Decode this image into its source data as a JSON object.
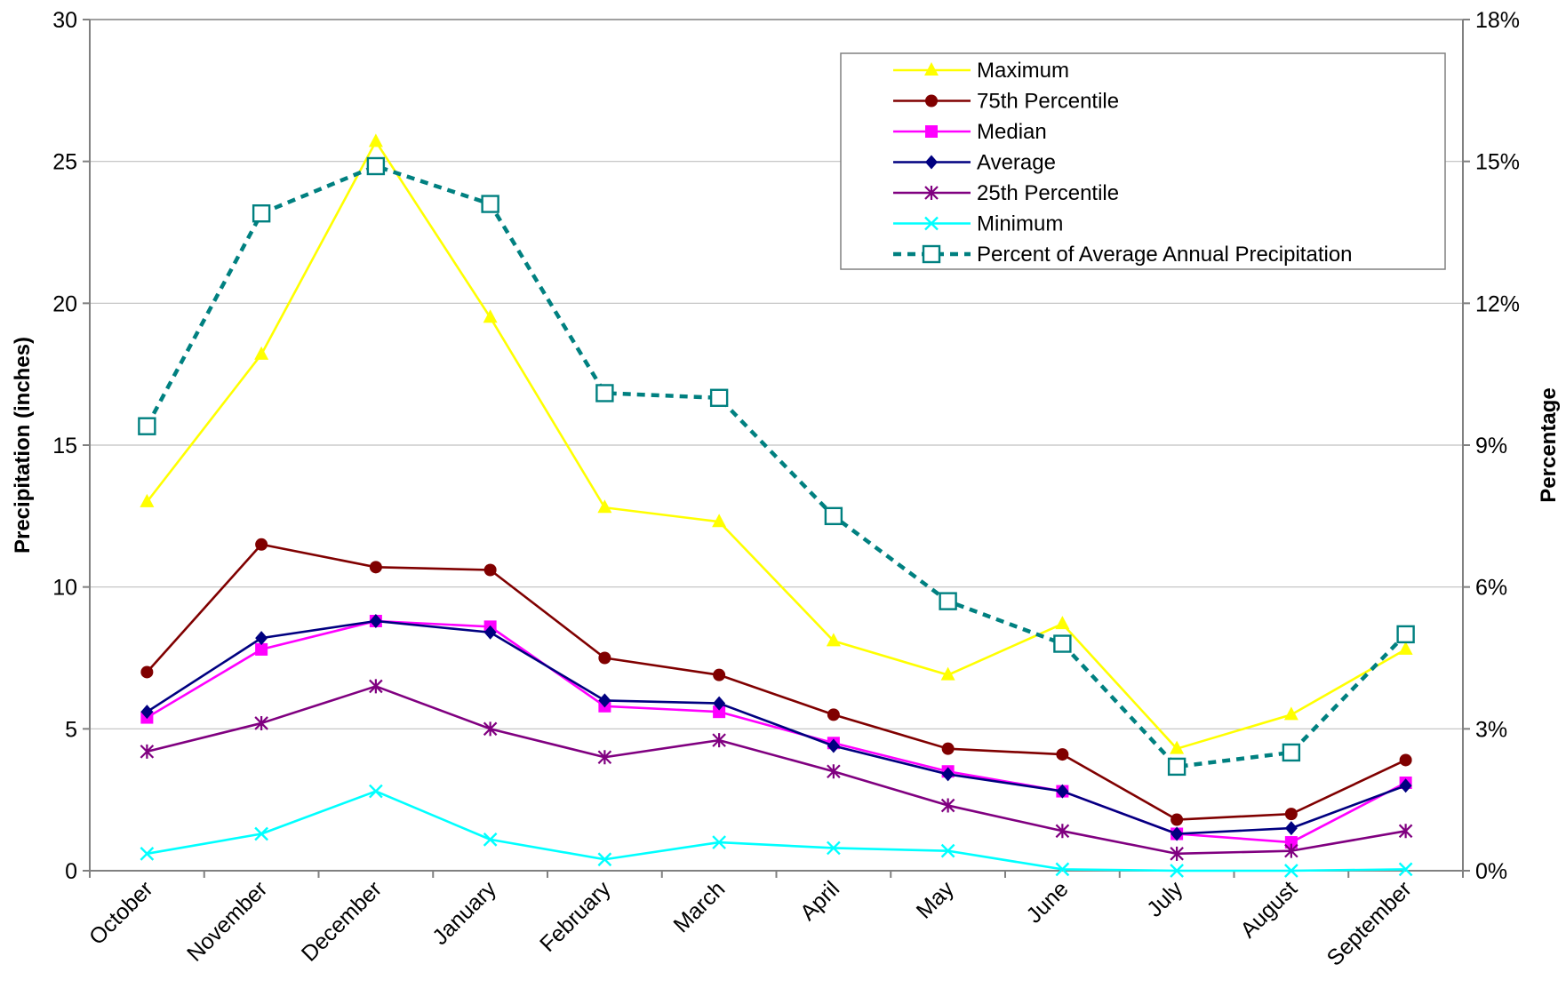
{
  "chart_data": {
    "type": "line",
    "title": "",
    "xlabel": "",
    "ylabel": "Precipitation (inches)",
    "y2label": "Percentage",
    "ylim": [
      0,
      30
    ],
    "y2lim": [
      0,
      18
    ],
    "yticks": [
      "0",
      "5",
      "10",
      "15",
      "20",
      "25",
      "30"
    ],
    "y2ticks": [
      "0%",
      "3%",
      "6%",
      "9%",
      "12%",
      "15%",
      "18%"
    ],
    "grid": true,
    "legend_position": "top-right",
    "categories": [
      "October",
      "November",
      "December",
      "January",
      "February",
      "March",
      "April",
      "May",
      "June",
      "July",
      "August",
      "September"
    ],
    "series": [
      {
        "name": "Maximum",
        "axis": "left",
        "color": "#FFFF00",
        "marker": "triangle",
        "dash": false,
        "values": [
          13.0,
          18.2,
          25.7,
          19.5,
          12.8,
          12.3,
          8.1,
          6.9,
          8.7,
          4.3,
          5.5,
          7.8
        ]
      },
      {
        "name": "75th Percentile",
        "axis": "left",
        "color": "#800000",
        "marker": "circle",
        "dash": false,
        "values": [
          7.0,
          11.5,
          10.7,
          10.6,
          7.5,
          6.9,
          5.5,
          4.3,
          4.1,
          1.8,
          2.0,
          3.9
        ]
      },
      {
        "name": "Median",
        "axis": "left",
        "color": "#FF00FF",
        "marker": "square",
        "dash": false,
        "values": [
          5.4,
          7.8,
          8.8,
          8.6,
          5.8,
          5.6,
          4.5,
          3.5,
          2.8,
          1.3,
          1.0,
          3.1
        ]
      },
      {
        "name": "Average",
        "axis": "left",
        "color": "#000080",
        "marker": "diamond",
        "dash": false,
        "values": [
          5.6,
          8.2,
          8.8,
          8.4,
          6.0,
          5.9,
          4.4,
          3.4,
          2.8,
          1.3,
          1.5,
          3.0
        ]
      },
      {
        "name": "25th Percentile",
        "axis": "left",
        "color": "#800080",
        "marker": "star",
        "dash": false,
        "values": [
          4.2,
          5.2,
          6.5,
          5.0,
          4.0,
          4.6,
          3.5,
          2.3,
          1.4,
          0.6,
          0.7,
          1.4
        ]
      },
      {
        "name": "Minimum",
        "axis": "left",
        "color": "#00FFFF",
        "marker": "x",
        "dash": false,
        "values": [
          0.6,
          1.3,
          2.8,
          1.1,
          0.4,
          1.0,
          0.8,
          0.7,
          0.05,
          0.0,
          0.0,
          0.05
        ]
      },
      {
        "name": "Percent of Average Annual Precipitation",
        "axis": "right",
        "color": "#008080",
        "marker": "open-square",
        "dash": true,
        "values": [
          9.4,
          13.9,
          14.9,
          14.1,
          10.1,
          10.0,
          7.5,
          5.7,
          4.8,
          2.2,
          2.5,
          5.0
        ]
      }
    ]
  }
}
